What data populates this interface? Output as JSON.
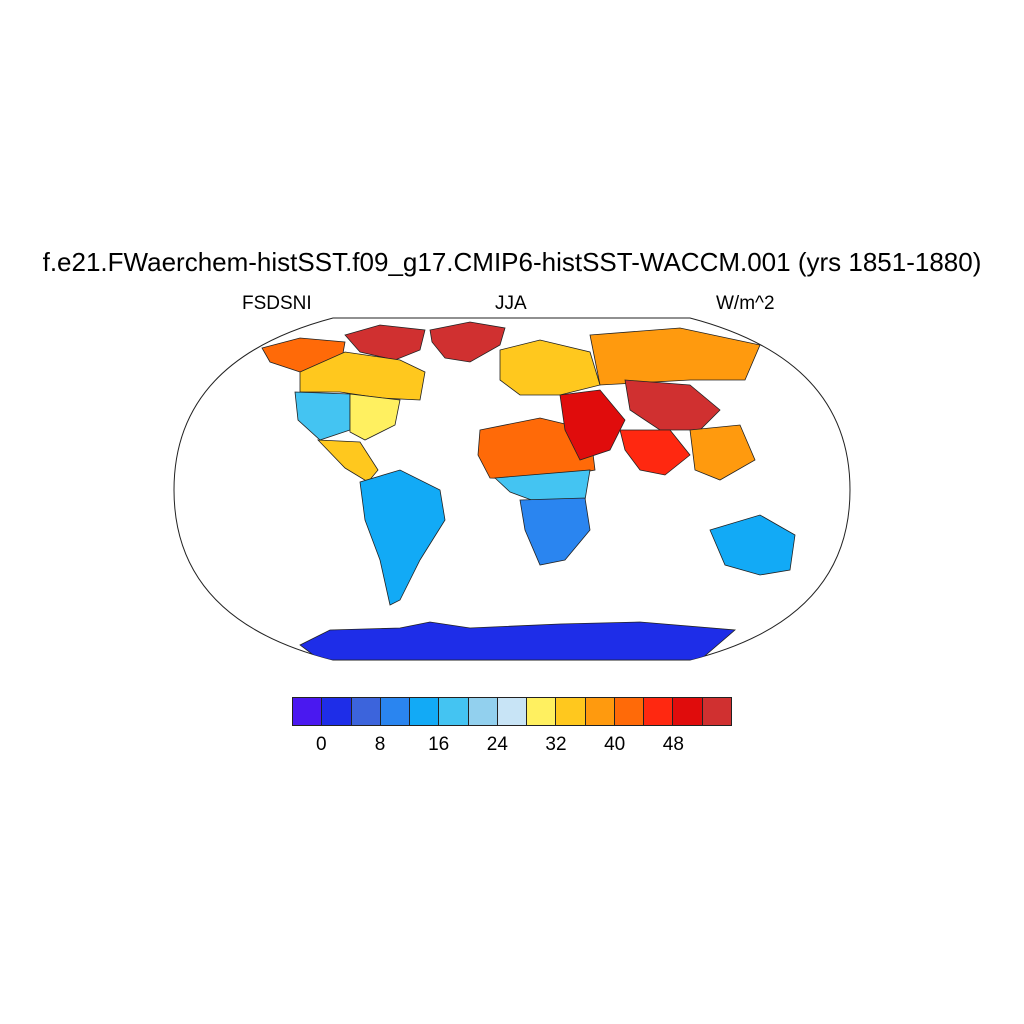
{
  "title": "f.e21.FWaerchem-histSST.f09_g17.CMIP6-histSST-WACCM.001 (yrs 1851-1880)",
  "left_string": "FSDSNI",
  "center_string": "JJA",
  "right_string": "W/m^2",
  "colorbar": {
    "colors": [
      "#4a18f0",
      "#1e2de8",
      "#3c64dc",
      "#2a85f0",
      "#12aaf6",
      "#44c4f2",
      "#92d0ee",
      "#c8e4f6",
      "#fff060",
      "#ffc81e",
      "#ff9a0e",
      "#ff6a08",
      "#ff2810",
      "#e00c0c",
      "#d03030"
    ],
    "tick_labels": [
      "0",
      "8",
      "16",
      "24",
      "32",
      "40",
      "48"
    ]
  },
  "map": {
    "projection": "Robinson",
    "regions": [
      {
        "name": "Antarctica",
        "level": 1
      },
      {
        "name": "Greenland",
        "level": 14
      },
      {
        "name": "Canadian Arctic",
        "level": 14
      },
      {
        "name": "Alaska",
        "level": 11
      },
      {
        "name": "Canada",
        "level": 9
      },
      {
        "name": "Western US",
        "level": 5
      },
      {
        "name": "Eastern US",
        "level": 8
      },
      {
        "name": "Mexico",
        "level": 9
      },
      {
        "name": "South America",
        "level": 4
      },
      {
        "name": "North Africa",
        "level": 11
      },
      {
        "name": "Central Africa",
        "level": 5
      },
      {
        "name": "Southern Africa",
        "level": 3
      },
      {
        "name": "Europe",
        "level": 9
      },
      {
        "name": "Siberia",
        "level": 10
      },
      {
        "name": "Middle East",
        "level": 13
      },
      {
        "name": "Central Asia",
        "level": 14
      },
      {
        "name": "South Asia",
        "level": 12
      },
      {
        "name": "Southeast Asia",
        "level": 10
      },
      {
        "name": "Australia",
        "level": 4
      }
    ]
  }
}
